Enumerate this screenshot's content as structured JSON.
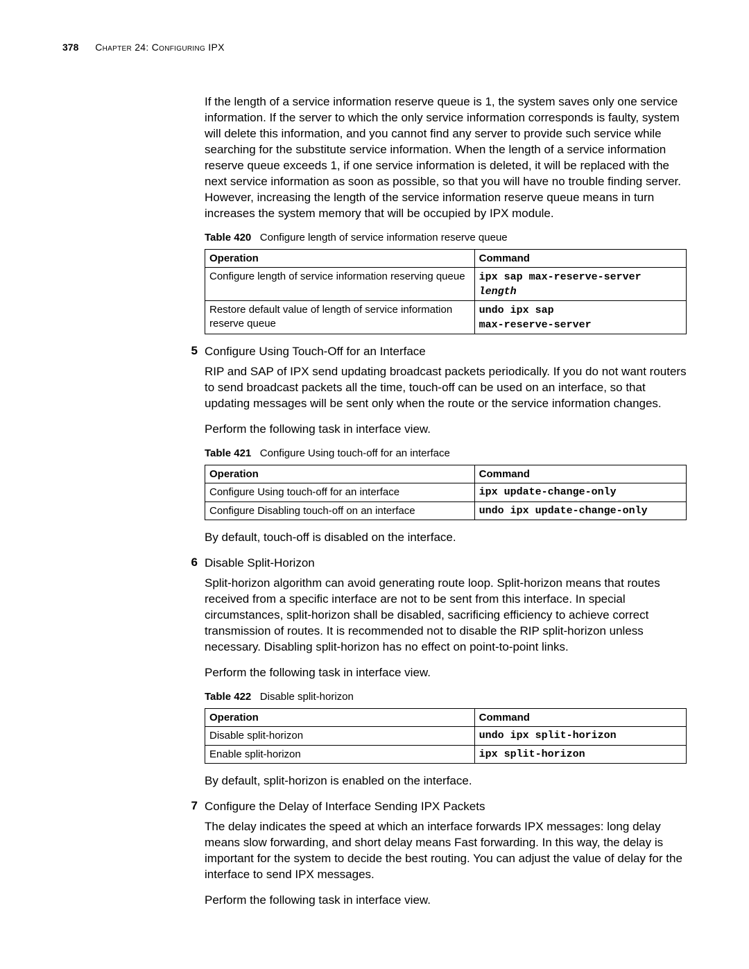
{
  "header": {
    "page_number": "378",
    "chapter_text": "Chapter 24: Configuring IPX"
  },
  "intro_para": "If the length of a service information reserve queue is 1, the system saves only one service information. If the server to which the only service information corresponds is faulty, system will delete this information, and you cannot find any server to provide such service while searching for the substitute service information. When the length of a service information reserve queue exceeds 1, if one service information is deleted, it will be replaced with the next service information as soon as possible, so that you will have no trouble finding server. However, increasing the length of the service information reserve queue means in turn increases the system memory that will be occupied by IPX module.",
  "table420": {
    "label": "Table 420",
    "caption": "Configure length of service information reserve queue",
    "head_op": "Operation",
    "head_cmd": "Command",
    "r1_op": "Configure length of service information reserving queue",
    "r1_cmd_a": "ipx sap max-reserve-server",
    "r1_cmd_b": "length",
    "r2_op": "Restore default value of length of service information reserve queue",
    "r2_cmd_a": "undo ipx sap",
    "r2_cmd_b": "max-reserve-server"
  },
  "step5": {
    "num": "5",
    "title": "Configure Using Touch-Off for an Interface",
    "para": "RIP and SAP of IPX send updating broadcast packets periodically. If you do not want routers to send broadcast packets all the time, touch-off can be used on an interface, so that updating messages will be sent only when the route or the service information changes.",
    "perform": "Perform the following task in interface view."
  },
  "table421": {
    "label": "Table 421",
    "caption": "Configure Using touch-off for an interface",
    "head_op": "Operation",
    "head_cmd": "Command",
    "r1_op": "Configure Using touch-off for an interface",
    "r1_cmd": "ipx update-change-only",
    "r2_op": "Configure Disabling touch-off on an interface",
    "r2_cmd": "undo ipx update-change-only"
  },
  "after421": "By default, touch-off is disabled on the interface.",
  "step6": {
    "num": "6",
    "title": "Disable Split-Horizon",
    "para": "Split-horizon algorithm can avoid generating route loop. Split-horizon means that routes received from a specific interface are not to be sent from this interface. In special circumstances, split-horizon shall be disabled, sacrificing efficiency to achieve correct transmission of routes. It is recommended not to disable the RIP split-horizon unless necessary. Disabling split-horizon has no effect on point-to-point links.",
    "perform": "Perform the following task in interface view."
  },
  "table422": {
    "label": "Table 422",
    "caption": "Disable split-horizon",
    "head_op": "Operation",
    "head_cmd": "Command",
    "r1_op": "Disable split-horizon",
    "r1_cmd": "undo ipx split-horizon",
    "r2_op": "Enable split-horizon",
    "r2_cmd": "ipx split-horizon"
  },
  "after422": "By default, split-horizon is enabled on the interface.",
  "step7": {
    "num": "7",
    "title": "Configure the Delay of Interface Sending IPX Packets",
    "para": "The delay indicates the speed at which an interface forwards IPX messages: long delay means slow forwarding, and short delay means Fast forwarding. In this way, the delay is important for the system to decide the best routing. You can adjust the value of delay for the interface to send IPX messages.",
    "perform": "Perform the following task in interface view."
  }
}
